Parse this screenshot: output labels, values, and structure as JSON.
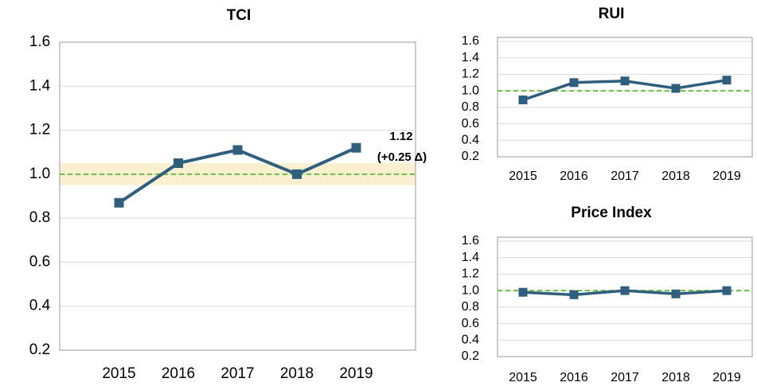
{
  "chart_data": [
    {
      "type": "line",
      "title": "TCI",
      "categories": [
        "2015",
        "2016",
        "2017",
        "2018",
        "2019"
      ],
      "series": [
        {
          "name": "TCI",
          "color": "#2e5f7f",
          "values": [
            0.87,
            1.05,
            1.11,
            1.0,
            1.12
          ]
        }
      ],
      "ylim": [
        0.2,
        1.6
      ],
      "yticks": [
        0.2,
        0.4,
        0.6,
        0.8,
        {
          "value": 1,
          "label": "1.0"
        },
        1.2,
        1.4,
        1.6
      ],
      "grid": true,
      "reference_line": 1,
      "band": [
        0.95,
        1.05
      ],
      "annotations": [
        "1.12",
        "(+0.25 Δ)"
      ]
    },
    {
      "type": "line",
      "title": "RUI",
      "categories": [
        "2015",
        "2016",
        "2017",
        "2018",
        "2019"
      ],
      "series": [
        {
          "name": "RUI",
          "color": "#2e5f7f",
          "values": [
            0.89,
            1.1,
            1.12,
            1.03,
            1.13
          ]
        }
      ],
      "ylim": [
        0.2,
        1.6
      ],
      "yticks": [
        0.2,
        0.4,
        0.6,
        0.8,
        {
          "value": 1,
          "label": "1.0"
        },
        1.2,
        1.4,
        1.6
      ],
      "grid": true,
      "reference_line": 1
    },
    {
      "type": "line",
      "title": "Price Index",
      "categories": [
        "2015",
        "2016",
        "2017",
        "2018",
        "2019"
      ],
      "series": [
        {
          "name": "Price Index",
          "color": "#2e5f7f",
          "values": [
            0.98,
            0.95,
            1.0,
            0.96,
            1.0
          ]
        }
      ],
      "ylim": [
        0.2,
        1.6
      ],
      "yticks": [
        0.2,
        0.4,
        0.6,
        0.8,
        {
          "value": 1,
          "label": "1.0"
        },
        1.2,
        1.4,
        1.6
      ],
      "grid": true,
      "reference_line": 1
    }
  ]
}
